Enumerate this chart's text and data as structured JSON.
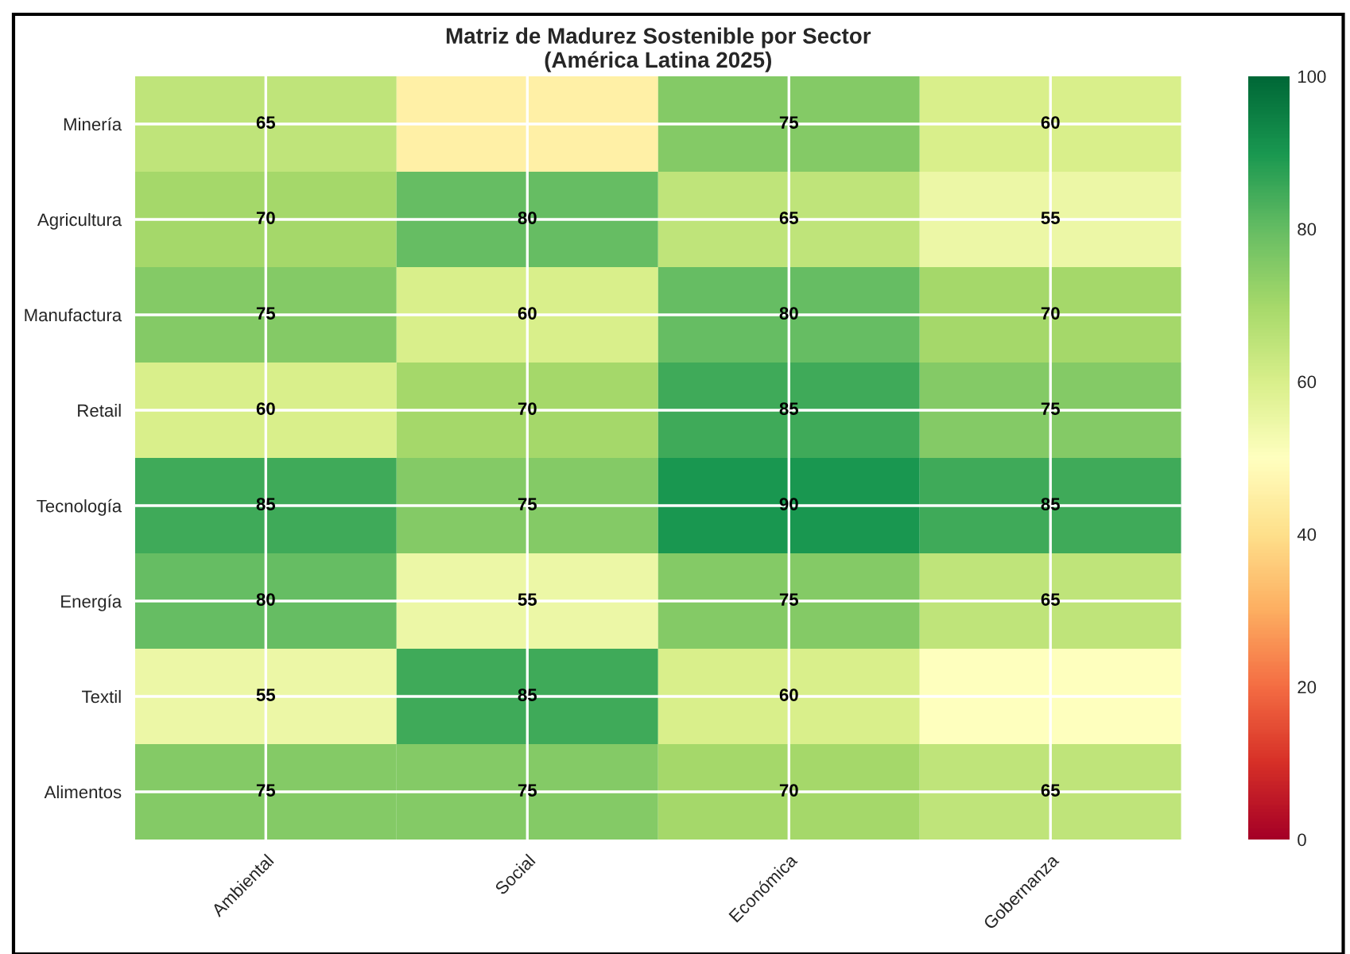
{
  "chart_data": {
    "type": "heatmap",
    "title": "Matriz de Madurez Sostenible por Sector\n(América Latina 2025)",
    "categories": [
      "Ambiental",
      "Social",
      "Económica",
      "Gobernanza"
    ],
    "y_categories": [
      "Minería",
      "Agricultura",
      "Manufactura",
      "Retail",
      "Tecnología",
      "Energía",
      "Textil",
      "Alimentos"
    ],
    "cells": [
      [
        65,
        45,
        75,
        60
      ],
      [
        70,
        80,
        65,
        55
      ],
      [
        75,
        60,
        80,
        70
      ],
      [
        60,
        70,
        85,
        75
      ],
      [
        85,
        75,
        90,
        85
      ],
      [
        80,
        55,
        75,
        65
      ],
      [
        55,
        85,
        60,
        50
      ],
      [
        75,
        75,
        70,
        65
      ]
    ],
    "data_labels": true,
    "cell_labels": [
      [
        "65",
        null,
        "75",
        "60"
      ],
      [
        "70",
        "80",
        "65",
        "55"
      ],
      [
        "75",
        "60",
        "80",
        "70"
      ],
      [
        "60",
        "70",
        "85",
        "75"
      ],
      [
        "85",
        "75",
        "90",
        "85"
      ],
      [
        "80",
        "55",
        "75",
        "65"
      ],
      [
        "55",
        "85",
        "60",
        null
      ],
      [
        "75",
        "75",
        "70",
        "65"
      ]
    ],
    "clim": [
      0,
      100
    ],
    "cticks": [
      0,
      20,
      40,
      60,
      80,
      100
    ],
    "grid": true
  }
}
